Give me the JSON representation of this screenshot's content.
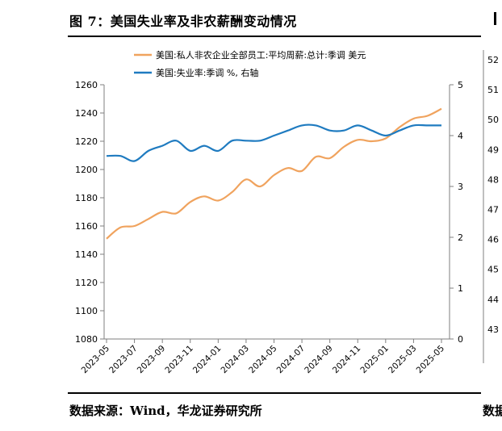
{
  "header": {
    "title": "图 7：美国失业率及非农薪酬变动情况"
  },
  "footer": {
    "source": "数据来源：Wind，华龙证券研究所",
    "right_fragment": "数据"
  },
  "right_panel_fragment": {
    "tick_labels": [
      "52",
      "51",
      "50",
      "49",
      "48",
      "47",
      "46",
      "45",
      "44",
      "43"
    ]
  },
  "chart_data": {
    "type": "line",
    "title": "",
    "legend": [
      "美国:私人非农企业全部员工:平均周薪:总计:季调 美元",
      "美国:失业率:季调 %, 右轴"
    ],
    "legend_placement": "top-center",
    "grid": false,
    "colors": {
      "wage": "#F0A35E",
      "unemployment": "#1F7BC0"
    },
    "x_ticks": [
      "2023-05",
      "2023-07",
      "2023-09",
      "2023-11",
      "2024-01",
      "2024-03",
      "2024-05",
      "2024-07",
      "2024-09",
      "2024-11",
      "2025-01",
      "2025-03",
      "2025-05"
    ],
    "y_left": {
      "min": 1080,
      "max": 1260,
      "step": 20,
      "ticks": [
        "1260",
        "1240",
        "1220",
        "1200",
        "1180",
        "1160",
        "1140",
        "1120",
        "1100",
        "1080"
      ]
    },
    "y_right": {
      "min": 0,
      "max": 5,
      "step": 1,
      "ticks": [
        "5",
        "4",
        "3",
        "2",
        "1",
        "0"
      ]
    },
    "series": [
      {
        "name": "美国:私人非农企业全部员工:平均周薪:总计:季调 美元",
        "axis": "left",
        "x": [
          "2023-05",
          "2023-06",
          "2023-07",
          "2023-08",
          "2023-09",
          "2023-10",
          "2023-11",
          "2023-12",
          "2024-01",
          "2024-02",
          "2024-03",
          "2024-04",
          "2024-05",
          "2024-06",
          "2024-07",
          "2024-08",
          "2024-09",
          "2024-10",
          "2024-11",
          "2024-12",
          "2025-01",
          "2025-02",
          "2025-03",
          "2025-04",
          "2025-05"
        ],
        "values": [
          1151,
          1159,
          1160,
          1165,
          1170,
          1169,
          1177,
          1181,
          1178,
          1184,
          1193,
          1188,
          1196,
          1201,
          1199,
          1209,
          1208,
          1216,
          1221,
          1220,
          1222,
          1230,
          1236,
          1238,
          1243
        ]
      },
      {
        "name": "美国:失业率:季调 %, 右轴",
        "axis": "right",
        "x": [
          "2023-05",
          "2023-06",
          "2023-07",
          "2023-08",
          "2023-09",
          "2023-10",
          "2023-11",
          "2023-12",
          "2024-01",
          "2024-02",
          "2024-03",
          "2024-04",
          "2024-05",
          "2024-06",
          "2024-07",
          "2024-08",
          "2024-09",
          "2024-10",
          "2024-11",
          "2024-12",
          "2025-01",
          "2025-02",
          "2025-03",
          "2025-04",
          "2025-05"
        ],
        "values": [
          3.6,
          3.6,
          3.5,
          3.7,
          3.8,
          3.9,
          3.7,
          3.8,
          3.7,
          3.9,
          3.9,
          3.9,
          4.0,
          4.1,
          4.2,
          4.2,
          4.1,
          4.1,
          4.2,
          4.1,
          4.0,
          4.1,
          4.2,
          4.2,
          4.2
        ]
      }
    ]
  }
}
